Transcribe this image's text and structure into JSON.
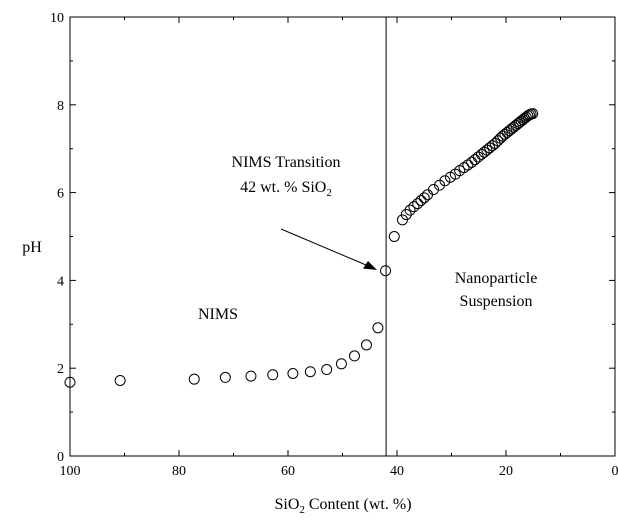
{
  "chart_data": {
    "type": "scatter",
    "xlabel": {
      "pre": "SiO",
      "sub": "2",
      "post": " Content (wt. %)"
    },
    "ylabel": "pH",
    "xlim": [
      100,
      0
    ],
    "ylim": [
      0,
      10
    ],
    "x_ticks": [
      "100",
      "80",
      "60",
      "40",
      "20",
      "0"
    ],
    "y_ticks": [
      "0",
      "2",
      "4",
      "6",
      "8",
      "10"
    ],
    "grid": false,
    "vline_x": 42,
    "annotations": {
      "transition_line1": "NIMS Transition",
      "transition_line2_pre": "42 wt. % SiO",
      "transition_line2_sub": "2",
      "nims": "NIMS",
      "suspension_line1": "Nanoparticle",
      "suspension_line2": "Suspension"
    },
    "series": [
      {
        "marker": "open-circle",
        "x": [
          100,
          90.8,
          77.2,
          71.5,
          66.8,
          62.8,
          59.1,
          55.9,
          52.9,
          50.2,
          47.8,
          45.6,
          43.5,
          42.1,
          40.5,
          39.0,
          38.3,
          37.6,
          36.9,
          36.2,
          35.6,
          35.0,
          34.4,
          33.3,
          32.2,
          31.2,
          30.2,
          29.3,
          28.5,
          27.7,
          27.0,
          26.3,
          25.7,
          25.1,
          24.5,
          24.0,
          23.5,
          23.0,
          22.5,
          22.0,
          21.5,
          21.0,
          20.6,
          20.2,
          19.8,
          19.4,
          19.0,
          18.6,
          18.2,
          17.8,
          17.5,
          17.2,
          16.9,
          16.6,
          16.3,
          16.0,
          15.7,
          15.4,
          15.1
        ],
        "y": [
          1.68,
          1.72,
          1.75,
          1.79,
          1.82,
          1.85,
          1.88,
          1.92,
          1.97,
          2.1,
          2.28,
          2.53,
          2.92,
          4.22,
          5.0,
          5.38,
          5.5,
          5.6,
          5.68,
          5.75,
          5.82,
          5.88,
          5.95,
          6.07,
          6.17,
          6.27,
          6.35,
          6.42,
          6.5,
          6.57,
          6.63,
          6.69,
          6.75,
          6.81,
          6.87,
          6.92,
          6.97,
          7.02,
          7.07,
          7.12,
          7.18,
          7.24,
          7.29,
          7.33,
          7.37,
          7.41,
          7.45,
          7.49,
          7.53,
          7.57,
          7.6,
          7.63,
          7.66,
          7.69,
          7.72,
          7.75,
          7.77,
          7.79,
          7.8
        ]
      }
    ]
  }
}
